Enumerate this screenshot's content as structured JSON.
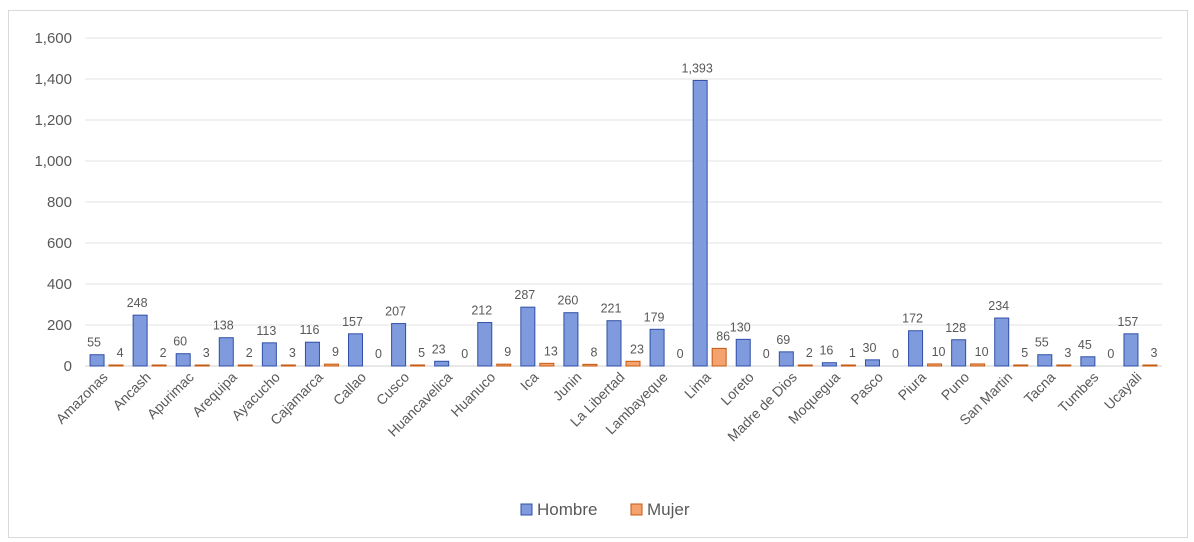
{
  "chart_data": {
    "type": "bar",
    "title": "",
    "xlabel": "",
    "ylabel": "",
    "ylim": [
      0,
      1600
    ],
    "yticks": [
      0,
      200,
      400,
      600,
      800,
      1000,
      1200,
      1400,
      1600
    ],
    "ytick_labels": [
      "0",
      "200",
      "400",
      "600",
      "800",
      "1,000",
      "1,200",
      "1,400",
      "1,600"
    ],
    "grid": true,
    "legend_position": "bottom",
    "categories": [
      "Amazonas",
      "Ancash",
      "Apurimac",
      "Arequipa",
      "Ayacucho",
      "Cajamarca",
      "Callao",
      "Cusco",
      "Huancavelica",
      "Huanuco",
      "Ica",
      "Junin",
      "La Libertad",
      "Lambayeque",
      "Lima",
      "Loreto",
      "Madre de Dios",
      "Moquegua",
      "Pasco",
      "Piura",
      "Puno",
      "San Martin",
      "Tacna",
      "Tumbes",
      "Ucayali"
    ],
    "series": [
      {
        "name": "Hombre",
        "color": "#7f9bdd",
        "stroke": "#2f4fa8",
        "values": [
          55,
          248,
          60,
          138,
          113,
          116,
          157,
          207,
          23,
          212,
          287,
          260,
          221,
          179,
          1393,
          130,
          69,
          16,
          30,
          172,
          128,
          234,
          55,
          45,
          157
        ],
        "labels": [
          "55",
          "248",
          "60",
          "138",
          "113",
          "116",
          "157",
          "207",
          "23",
          "212",
          "287",
          "260",
          "221",
          "179",
          "1,393",
          "130",
          "69",
          "16",
          "30",
          "172",
          "128",
          "234",
          "55",
          "45",
          "157"
        ]
      },
      {
        "name": "Mujer",
        "color": "#f4a26e",
        "stroke": "#c55a11",
        "values": [
          4,
          2,
          3,
          2,
          3,
          9,
          0,
          5,
          0,
          9,
          13,
          8,
          23,
          0,
          86,
          0,
          2,
          1,
          0,
          10,
          10,
          5,
          3,
          0,
          3
        ],
        "labels": [
          "4",
          "2",
          "3",
          "2",
          "3",
          "9",
          "0",
          "5",
          "0",
          "9",
          "13",
          "8",
          "23",
          "0",
          "86",
          "0",
          "2",
          "1",
          "0",
          "10",
          "10",
          "5",
          "3",
          "0",
          "3"
        ]
      }
    ]
  }
}
